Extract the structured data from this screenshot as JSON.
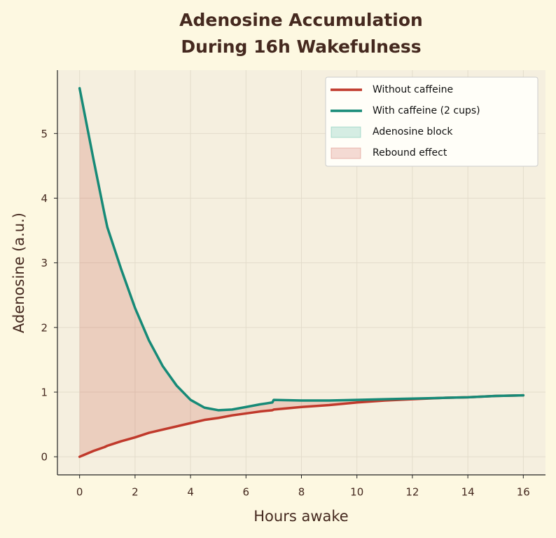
{
  "chart_data": {
    "type": "line",
    "title": "Adenosine Accumulation\nDuring 16h Wakefulness",
    "x_label": "Hours awake",
    "y_label": "Adenosine (a.u.)",
    "x": [
      0,
      0.5,
      0.9,
      1,
      1.5,
      2,
      2.5,
      3,
      3.5,
      4,
      4.5,
      5,
      5.5,
      6,
      6.5,
      6.95,
      7,
      8,
      9,
      10,
      11,
      12,
      13,
      14,
      15,
      16
    ],
    "series": [
      {
        "name": "Without caffeine",
        "color": "#c0392b",
        "values": [
          0,
          0.09,
          0.15,
          0.17,
          0.24,
          0.3,
          0.37,
          0.42,
          0.47,
          0.52,
          0.57,
          0.6,
          0.64,
          0.67,
          0.7,
          0.72,
          0.73,
          0.77,
          0.8,
          0.84,
          0.87,
          0.89,
          0.91,
          0.92,
          0.94,
          0.95
        ]
      },
      {
        "name": "With caffeine (2 cups)",
        "color": "#168a77",
        "values": [
          5.7,
          4.6,
          3.75,
          3.55,
          2.9,
          2.3,
          1.8,
          1.4,
          1.1,
          0.88,
          0.76,
          0.72,
          0.73,
          0.77,
          0.81,
          0.84,
          0.88,
          0.87,
          0.87,
          0.88,
          0.89,
          0.9,
          0.91,
          0.92,
          0.94,
          0.95
        ]
      }
    ],
    "fills": [
      {
        "name": "Adenosine block",
        "color": "#16a085"
      },
      {
        "name": "Rebound effect",
        "color": "#c0392b"
      }
    ],
    "xlim": [
      -0.8,
      16.8
    ],
    "ylim": [
      -0.28,
      5.98
    ],
    "xticks": [
      0,
      2,
      4,
      6,
      8,
      10,
      12,
      14,
      16
    ],
    "yticks": [
      0,
      1,
      2,
      3,
      4,
      5
    ],
    "grid": true,
    "legend": "upper right"
  }
}
